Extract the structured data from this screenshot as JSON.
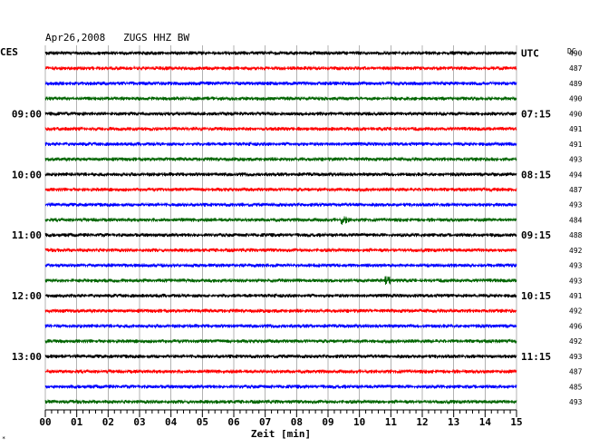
{
  "header": {
    "title": "Apr26,2008   ZUGS HHZ BW",
    "left_tz": "CES",
    "right_tz": "UTC",
    "dc_label": "DC"
  },
  "colors": {
    "trace_cycle": [
      "#000000",
      "#ff0000",
      "#0000ff",
      "#006400"
    ],
    "grid": "#808080",
    "frame": "#000000",
    "text": "#000000"
  },
  "chart_data": {
    "type": "line",
    "title": "Apr26,2008   ZUGS HHZ BW",
    "xlabel": "Zeit [min]",
    "xlim": [
      0,
      15
    ],
    "x_ticks": [
      "00",
      "01",
      "02",
      "03",
      "04",
      "05",
      "06",
      "07",
      "08",
      "09",
      "10",
      "11",
      "12",
      "13",
      "14",
      "15"
    ],
    "trace_count": 24,
    "left_time_labels": [
      {
        "trace": 4,
        "label": "09:00"
      },
      {
        "trace": 8,
        "label": "10:00"
      },
      {
        "trace": 12,
        "label": "11:00"
      },
      {
        "trace": 16,
        "label": "12:00"
      },
      {
        "trace": 20,
        "label": "13:00"
      }
    ],
    "right_time_labels": [
      {
        "trace": 0,
        "label": "UTC"
      },
      {
        "trace": 4,
        "label": "07:15"
      },
      {
        "trace": 8,
        "label": "08:15"
      },
      {
        "trace": 12,
        "label": "09:15"
      },
      {
        "trace": 16,
        "label": "10:15"
      },
      {
        "trace": 20,
        "label": "11:15"
      }
    ],
    "dc_values": [
      490,
      487,
      489,
      490,
      490,
      491,
      491,
      493,
      494,
      487,
      493,
      484,
      488,
      492,
      493,
      493,
      491,
      492,
      496,
      492,
      493,
      487,
      485,
      493
    ],
    "events": [
      {
        "trace": 11,
        "minute": 9.5
      },
      {
        "trace": 15,
        "minute": 10.9
      }
    ]
  }
}
